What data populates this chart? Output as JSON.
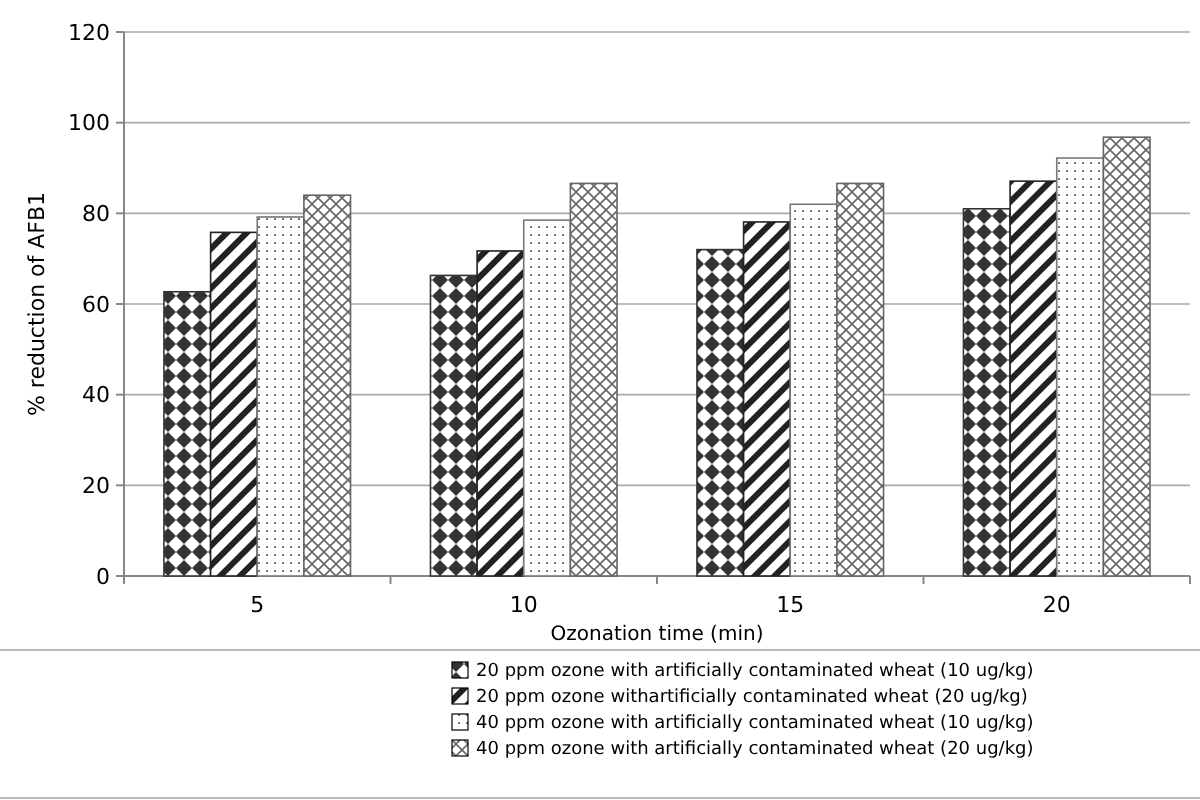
{
  "chart_data": {
    "type": "bar",
    "xlabel": "Ozonation time (min)",
    "ylabel": "% reduction of AFB1",
    "categories": [
      "5",
      "10",
      "15",
      "20"
    ],
    "series": [
      {
        "name": "20 ppm ozone  with artificially contaminated wheat (10 ug/kg)",
        "color": "#333333",
        "values": [
          62.7,
          66.3,
          72,
          81
        ]
      },
      {
        "name": "20 ppm ozone  withartificially contaminated wheat (20 ug/kg)",
        "color": "#222222",
        "values": [
          75.8,
          71.7,
          78.1,
          87.1
        ]
      },
      {
        "name": "40 ppm ozone  with artificially contaminated wheat (10 ug/kg)",
        "color": "#777777",
        "values": [
          79.2,
          78.5,
          82,
          92.2
        ]
      },
      {
        "name": "40 ppm ozone  with artificially contaminated wheat (20 ug/kg)",
        "color": "#666666",
        "values": [
          84,
          86.6,
          86.6,
          96.8
        ]
      }
    ],
    "ylim": [
      0,
      120
    ],
    "yticks": [
      0,
      20,
      40,
      60,
      80,
      100,
      120
    ],
    "grid": "y",
    "legend": "bottom"
  }
}
